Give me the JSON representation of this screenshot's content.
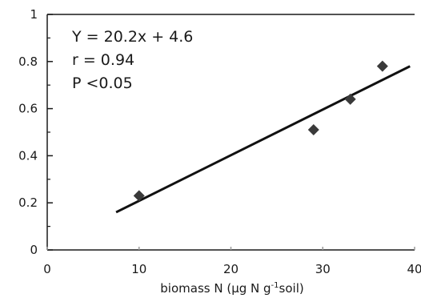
{
  "chart_data": {
    "type": "scatter",
    "title": "",
    "xlabel_parts": {
      "pre": "biomass N (µg N g",
      "sup": "-1",
      "post": "soil)"
    },
    "ylabel": "",
    "xlim": [
      0,
      40
    ],
    "ylim": [
      0,
      1
    ],
    "x_ticks": [
      0,
      10,
      20,
      30,
      40
    ],
    "x_tick_labels": [
      "0",
      "10",
      "20",
      "30",
      "40"
    ],
    "y_ticks": [
      0,
      0.2,
      0.4,
      0.6,
      0.8,
      1
    ],
    "y_tick_labels": [
      "0",
      "0.2",
      "0.4",
      "0.6",
      "0.8",
      "1"
    ],
    "grid": false,
    "legend": "none",
    "annotations": [
      "Y = 20.2x + 4.6",
      "r = 0.94",
      "P <0.05"
    ],
    "series": [
      {
        "points": [
          {
            "x": 10,
            "y": 0.23
          },
          {
            "x": 29,
            "y": 0.51
          },
          {
            "x": 33,
            "y": 0.64
          },
          {
            "x": 36.5,
            "y": 0.78
          }
        ],
        "color": "#3a3a3a"
      }
    ],
    "fit_line": {
      "x": [
        7.5,
        39.5
      ],
      "y": [
        0.16,
        0.78
      ],
      "color": "#111111"
    }
  }
}
